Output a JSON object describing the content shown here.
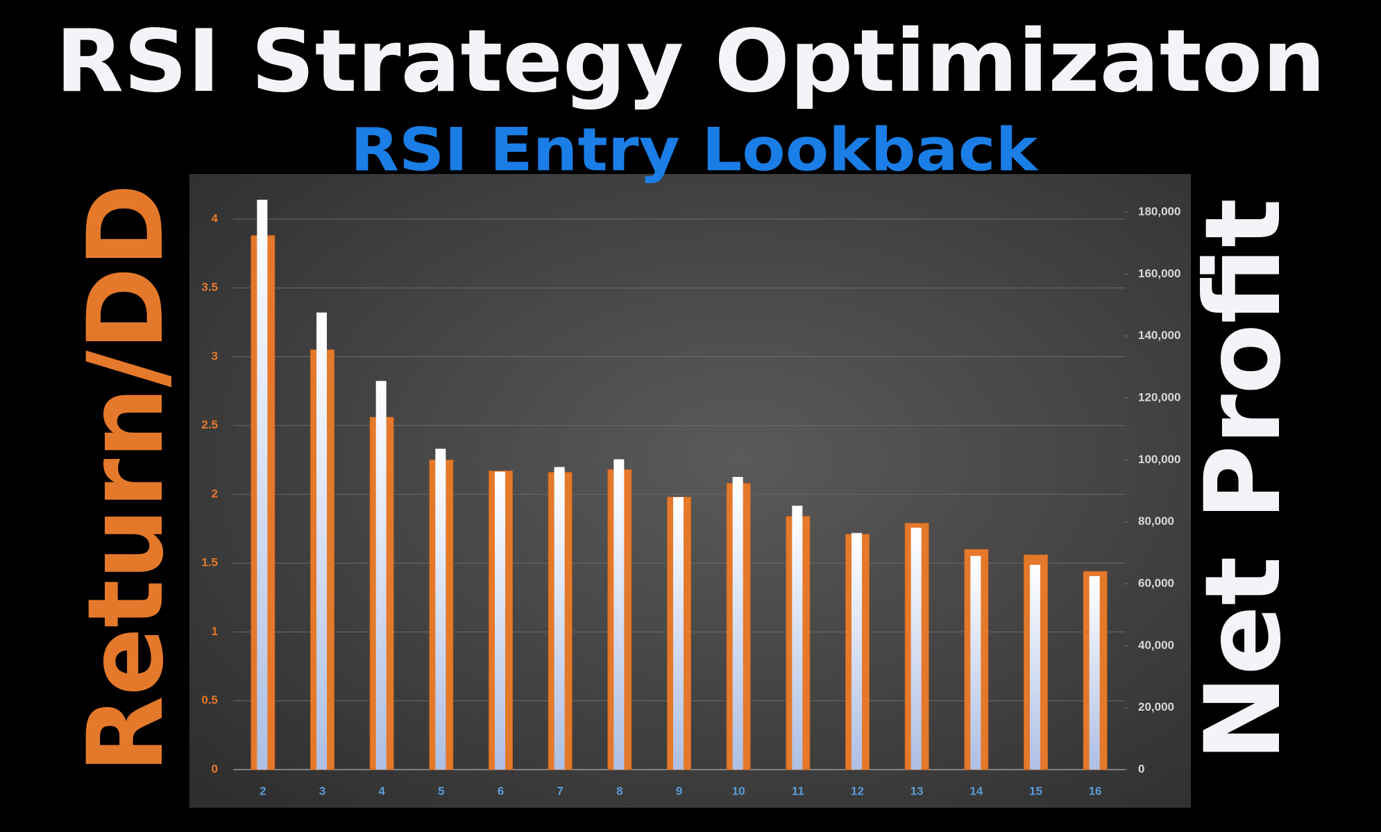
{
  "chart_data": {
    "type": "bar",
    "title": "RSI Strategy Optimizaton",
    "subtitle": "RSI Entry Lookback",
    "ylabel": "Return/DD",
    "y2label": "Net Profit",
    "categories": [
      "2",
      "3",
      "4",
      "5",
      "6",
      "7",
      "8",
      "9",
      "10",
      "11",
      "12",
      "13",
      "14",
      "15",
      "16"
    ],
    "series": [
      {
        "name": "Return/DD",
        "color": "#e5792b",
        "values": [
          3.88,
          3.05,
          2.56,
          2.25,
          2.17,
          2.16,
          2.18,
          1.98,
          2.08,
          1.84,
          1.71,
          1.79,
          1.6,
          1.56,
          1.44
        ]
      },
      {
        "name": "Net Profit",
        "color": "#f4f6fb",
        "axis": "y2",
        "values": [
          184000,
          147600,
          125500,
          103600,
          96200,
          97700,
          100200,
          88000,
          94500,
          85200,
          76400,
          78100,
          69000,
          66100,
          62500
        ]
      }
    ],
    "ylim": [
      0,
      4
    ],
    "yticks": [
      0,
      0.5,
      1,
      1.5,
      2,
      2.5,
      3,
      3.5,
      4
    ],
    "y2lim": [
      0,
      180000
    ],
    "y2ticks": [
      0,
      {
        "value": 20000,
        "label": "20,000"
      },
      {
        "value": 40000,
        "label": "40,000"
      },
      {
        "value": 60000,
        "label": "60,000"
      },
      {
        "value": 80000,
        "label": "80,000"
      },
      {
        "value": 100000,
        "label": "100,000"
      },
      {
        "value": 120000,
        "label": "120,000"
      },
      {
        "value": 140000,
        "label": "140,000"
      },
      {
        "value": 160000,
        "label": "160,000"
      },
      {
        "value": 180000,
        "label": "180,000"
      }
    ],
    "grid": true
  }
}
